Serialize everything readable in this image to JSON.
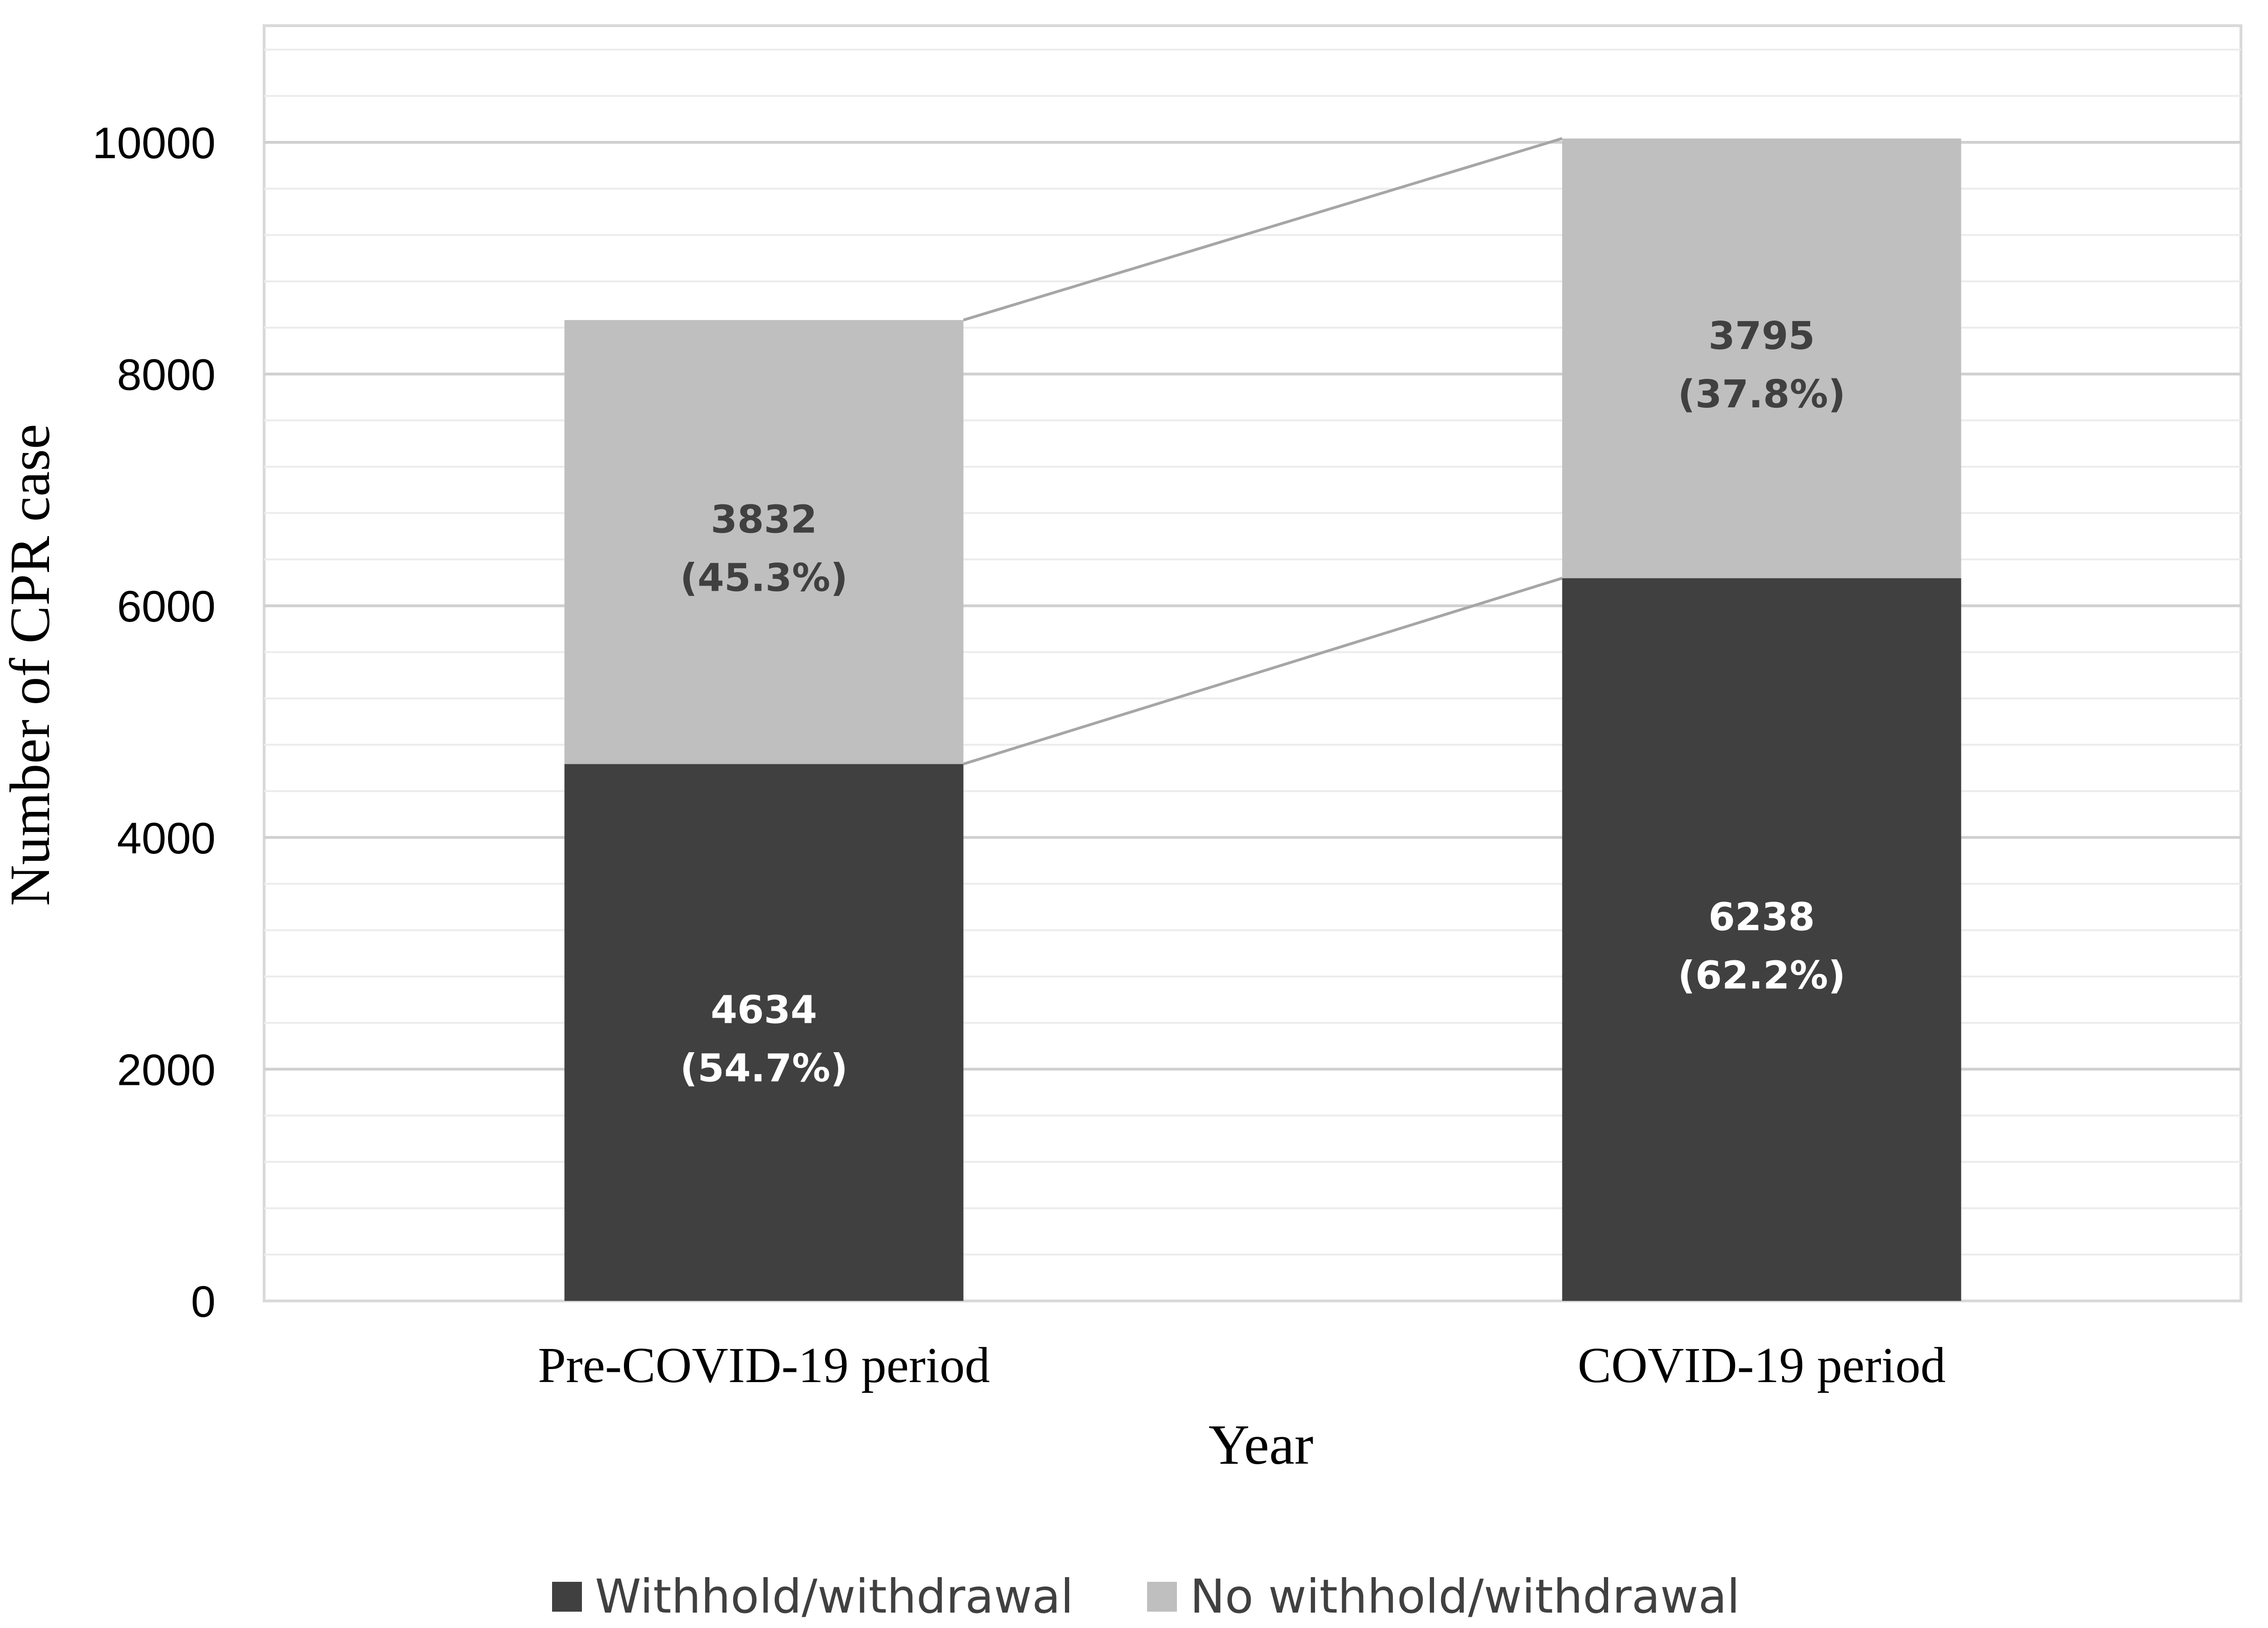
{
  "chart_data": {
    "type": "bar",
    "stacked": true,
    "categories": [
      "Pre-COVID-19 period",
      "COVID-19 period"
    ],
    "series": [
      {
        "name": "Withhold/withdrawal",
        "values": [
          4634,
          6238
        ],
        "labels": [
          "4634",
          "6238"
        ],
        "percents": [
          "(54.7%)",
          "(62.2%)"
        ],
        "color": "#404040",
        "label_color": "#ffffff"
      },
      {
        "name": "No withhold/withdrawal",
        "values": [
          3832,
          3795
        ],
        "labels": [
          "3832",
          "3795"
        ],
        "percents": [
          "(45.3%)",
          "(37.8%)"
        ],
        "color": "#bfbfbf",
        "label_color": "#404040"
      }
    ],
    "xlabel": "Year",
    "ylabel": "Number of CPR case",
    "ylim": [
      0,
      10000
    ],
    "yticks": [
      0,
      2000,
      4000,
      6000,
      8000,
      10000
    ],
    "ytick_labels": [
      "0",
      "2000",
      "4000",
      "6000",
      "8000",
      "10000"
    ],
    "grid": true,
    "series_lines": true,
    "legend_position": "bottom"
  }
}
